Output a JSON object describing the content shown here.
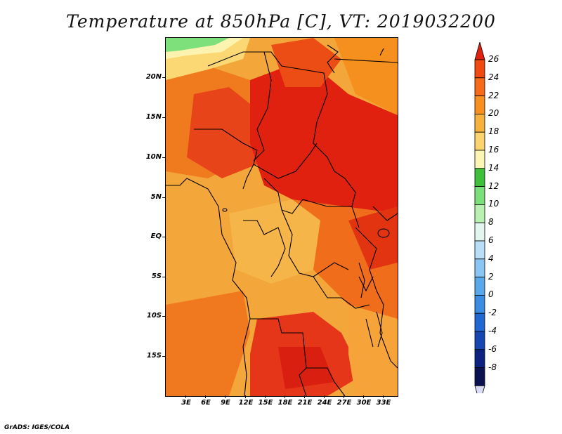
{
  "title": "Temperature at 850hPa [C], VT: 2019032200",
  "credit": "GrADS: IGES/COLA",
  "lat_ticks": [
    "20N",
    "15N",
    "10N",
    "5N",
    "EQ",
    "5S",
    "10S",
    "15S"
  ],
  "lon_ticks": [
    "3E",
    "6E",
    "9E",
    "12E",
    "15E",
    "18E",
    "21E",
    "24E",
    "27E",
    "30E",
    "33E"
  ],
  "colorbar": {
    "labels": [
      "26",
      "24",
      "22",
      "20",
      "18",
      "16",
      "14",
      "12",
      "10",
      "8",
      "6",
      "4",
      "2",
      "0",
      "-2",
      "-4",
      "-6",
      "-8"
    ],
    "colors": [
      "#e0210f",
      "#f04a10",
      "#f66a1a",
      "#f7901f",
      "#f6b23c",
      "#fbd370",
      "#fdf5b3",
      "#3fbf3c",
      "#7be07a",
      "#b9f1b0",
      "#e1f6ee",
      "#b9def8",
      "#8ac6f3",
      "#5aa8ec",
      "#3b8de3",
      "#2266d2",
      "#1546b2",
      "#0b2280",
      "#0a1250",
      "#d9dcf4"
    ]
  }
}
